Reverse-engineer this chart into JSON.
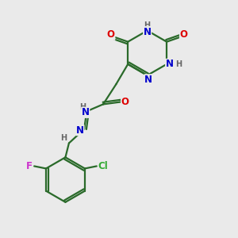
{
  "bg_color": "#eaeaea",
  "bond_color": "#2a6a2a",
  "bond_width": 1.6,
  "atom_colors": {
    "O": "#dd0000",
    "N": "#0000cc",
    "H": "#666666",
    "C": "#2a6a2a",
    "F": "#cc33cc",
    "Cl": "#33aa33",
    "default": "#2a6a2a"
  },
  "font_size": 8.5,
  "fig_size": [
    3.0,
    3.0
  ],
  "dpi": 100,
  "xlim": [
    0,
    10
  ],
  "ylim": [
    0,
    10
  ]
}
